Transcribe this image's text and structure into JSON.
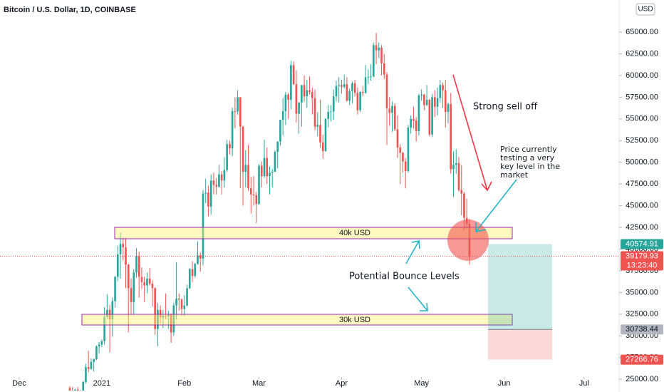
{
  "chart_data": {
    "type": "candlestick",
    "title": "Bitcoin / U.S. Dollar, 1D, COINBASE",
    "currency": "USD",
    "up_color": "#26a69a",
    "down_color": "#ef5350",
    "xlim": [
      -7.2,
      224.9
    ],
    "xticks": [
      {
        "value": 0,
        "label": "Dec"
      },
      {
        "value": 31,
        "label": "2021"
      },
      {
        "value": 62,
        "label": "Feb"
      },
      {
        "value": 90,
        "label": "Mar"
      },
      {
        "value": 121,
        "label": "Apr"
      },
      {
        "value": 151,
        "label": "May"
      },
      {
        "value": 182,
        "label": "Jun"
      },
      {
        "value": 212,
        "label": "Jul"
      }
    ],
    "ylim": [
      23700,
      68700
    ],
    "yticks": [
      {
        "value": 25000,
        "label": "25000.00"
      },
      {
        "value": 27500,
        "label": "27500.00"
      },
      {
        "value": 30000,
        "label": "30000.00"
      },
      {
        "value": 32500,
        "label": "32500.00"
      },
      {
        "value": 35000,
        "label": "35000.00"
      },
      {
        "value": 37500,
        "label": "37500.00"
      },
      {
        "value": 40000,
        "label": "40000.00"
      },
      {
        "value": 42500,
        "label": "42500.00"
      },
      {
        "value": 45000,
        "label": "45000.00"
      },
      {
        "value": 47500,
        "label": "47500.00"
      },
      {
        "value": 50000,
        "label": "50000.00"
      },
      {
        "value": 52500,
        "label": "52500.00"
      },
      {
        "value": 55000,
        "label": "55000.00"
      },
      {
        "value": 57500,
        "label": "57500.00"
      },
      {
        "value": 60000,
        "label": "60000.00"
      },
      {
        "value": 62500,
        "label": "62500.00"
      },
      {
        "value": 65000,
        "label": "65000.00"
      }
    ],
    "x": [
      19,
      20,
      21,
      22,
      23,
      24,
      25,
      26,
      27,
      28,
      29,
      30,
      31,
      32,
      33,
      34,
      35,
      36,
      37,
      38,
      39,
      40,
      41,
      42,
      43,
      44,
      45,
      46,
      47,
      48,
      49,
      50,
      51,
      52,
      53,
      54,
      55,
      56,
      57,
      58,
      59,
      60,
      61,
      62,
      63,
      64,
      65,
      66,
      67,
      68,
      69,
      70,
      71,
      72,
      73,
      74,
      75,
      76,
      77,
      78,
      79,
      80,
      81,
      82,
      83,
      84,
      85,
      86,
      87,
      88,
      89,
      90,
      91,
      92,
      93,
      94,
      95,
      96,
      97,
      98,
      99,
      100,
      101,
      102,
      103,
      104,
      105,
      106,
      107,
      108,
      109,
      110,
      111,
      112,
      113,
      114,
      115,
      116,
      117,
      118,
      119,
      120,
      121,
      122,
      123,
      124,
      125,
      126,
      127,
      128,
      129,
      130,
      131,
      132,
      133,
      134,
      135,
      136,
      137,
      138,
      139,
      140,
      141,
      142,
      143,
      144,
      145,
      146,
      147,
      148,
      149,
      150,
      151,
      152,
      153,
      154,
      155,
      156,
      157,
      158,
      159,
      160,
      161,
      162,
      163,
      164,
      165,
      166,
      167,
      168,
      169
    ],
    "open": [
      24000,
      23500,
      22700,
      23800,
      23200,
      23700,
      24700,
      26400,
      26200,
      27000,
      27300,
      28800,
      29000,
      29400,
      32200,
      33000,
      31900,
      34000,
      36800,
      39400,
      40600,
      40200,
      38200,
      35500,
      33900,
      37300,
      39200,
      36800,
      36200,
      35800,
      36600,
      36000,
      35500,
      30800,
      33000,
      32100,
      32300,
      32250,
      32500,
      30400,
      33500,
      34300,
      34200,
      33100,
      33500,
      35500,
      37700,
      36900,
      38300,
      39300,
      38900,
      46400,
      46500,
      44900,
      47900,
      47400,
      47200,
      48600,
      47900,
      49100,
      52100,
      51600,
      55900,
      55850,
      57500,
      54100,
      48900,
      49700,
      47000,
      46300,
      46200,
      45200,
      49600,
      48400,
      50500,
      48400,
      48800,
      48900,
      51200,
      52400,
      54900,
      55900,
      57800,
      57200,
      61200,
      59000,
      55600,
      56900,
      58900,
      57600,
      58300,
      58100,
      57400,
      54100,
      54300,
      52300,
      51300,
      55000,
      55800,
      55850,
      57600,
      58800,
      58900,
      58700,
      59000,
      57100,
      58200,
      59100,
      58000,
      56000,
      58100,
      58000,
      59800,
      59850,
      59900,
      63500,
      62900,
      63200,
      61400,
      60100,
      56200,
      55700,
      56500,
      53800,
      51700,
      51100,
      50100,
      49000,
      54000,
      55000,
      54800,
      53600,
      57700,
      57800,
      56600,
      57200,
      53200,
      57500,
      56400,
      57400,
      58900,
      58300,
      55800,
      56700,
      49200,
      49700,
      49900,
      46800,
      46400,
      43600,
      42900
    ],
    "high": [
      24200,
      24100,
      23900,
      24100,
      23800,
      24800,
      26800,
      28300,
      27400,
      27400,
      28900,
      29300,
      29600,
      33300,
      34800,
      33600,
      34400,
      36900,
      40400,
      41900,
      41300,
      41300,
      38300,
      36600,
      37700,
      40100,
      39700,
      37900,
      36800,
      37300,
      37800,
      36400,
      35600,
      33800,
      33500,
      33000,
      34900,
      32900,
      32600,
      33800,
      38500,
      34900,
      34300,
      34700,
      35900,
      37800,
      38600,
      38400,
      40900,
      39600,
      46800,
      48100,
      47300,
      48600,
      48800,
      48200,
      49700,
      49000,
      50600,
      52600,
      52500,
      56300,
      57500,
      58300,
      57500,
      54200,
      51400,
      52000,
      48300,
      48400,
      46600,
      49800,
      50100,
      52600,
      51700,
      49500,
      49200,
      51400,
      52400,
      54900,
      57400,
      58100,
      58000,
      61700,
      61600,
      60600,
      56900,
      58900,
      60000,
      59500,
      59900,
      58600,
      58400,
      55800,
      57200,
      53200,
      55100,
      56600,
      56600,
      58400,
      59400,
      59800,
      59500,
      60100,
      59800,
      58500,
      59300,
      59500,
      58600,
      58200,
      58800,
      61200,
      60700,
      61300,
      63800,
      64900,
      63800,
      63500,
      62500,
      60400,
      57500,
      57000,
      56800,
      55400,
      52100,
      51200,
      50500,
      54300,
      55400,
      56400,
      55200,
      57900,
      58400,
      57900,
      58900,
      57300,
      57900,
      58300,
      58600,
      59500,
      59200,
      59500,
      56900,
      58000,
      51300,
      51500,
      50600,
      49700,
      46600,
      45800,
      43500
    ],
    "low": [
      23100,
      22400,
      22400,
      22600,
      22700,
      23500,
      24500,
      25800,
      26100,
      25900,
      27200,
      28000,
      28700,
      29000,
      32000,
      28100,
      29900,
      33300,
      36300,
      36600,
      38700,
      35500,
      30400,
      32500,
      32400,
      36700,
      34400,
      35400,
      33900,
      34900,
      35800,
      33400,
      30100,
      28800,
      31400,
      30900,
      31900,
      30800,
      29200,
      30000,
      31900,
      32900,
      32300,
      32300,
      33400,
      35400,
      36200,
      36700,
      38200,
      37400,
      38100,
      45300,
      43800,
      44000,
      46300,
      46300,
      47100,
      46300,
      47100,
      48900,
      50900,
      50700,
      53900,
      55500,
      47000,
      45000,
      47100,
      46700,
      44100,
      45000,
      43000,
      45100,
      47100,
      48200,
      47500,
      46300,
      47100,
      48900,
      49300,
      51900,
      53100,
      54300,
      55000,
      56100,
      58900,
      54600,
      53300,
      54100,
      57000,
      56300,
      57800,
      55500,
      53700,
      53000,
      51700,
      50400,
      51200,
      54000,
      54700,
      54900,
      57000,
      56900,
      57900,
      58500,
      57000,
      56600,
      56800,
      57600,
      55500,
      55800,
      57600,
      57900,
      59000,
      59400,
      59800,
      61300,
      62000,
      60000,
      59600,
      52000,
      54200,
      53500,
      53600,
      50500,
      47500,
      48800,
      47000,
      48800,
      53300,
      53900,
      52400,
      53100,
      57100,
      56000,
      56500,
      53000,
      52900,
      55200,
      55400,
      56900,
      56300,
      54000,
      54500,
      48700,
      46000,
      48700,
      46600,
      43900,
      42100,
      42300,
      38200
    ],
    "close": [
      23500,
      22700,
      23800,
      23200,
      23700,
      24700,
      26400,
      26200,
      27000,
      27300,
      28800,
      29000,
      29400,
      32200,
      33000,
      31900,
      34000,
      36800,
      39400,
      40600,
      40200,
      38200,
      35500,
      33900,
      37300,
      39200,
      36800,
      36200,
      35800,
      36600,
      36000,
      35500,
      30800,
      33000,
      32100,
      32300,
      32250,
      32500,
      30400,
      33500,
      34300,
      34200,
      33100,
      33500,
      35500,
      37700,
      36900,
      38300,
      39300,
      38900,
      46400,
      46500,
      44900,
      47900,
      47400,
      47200,
      48600,
      47900,
      49100,
      52100,
      51600,
      55900,
      55850,
      57500,
      54100,
      48900,
      49700,
      47000,
      46300,
      46200,
      45200,
      49600,
      48400,
      50500,
      48400,
      48800,
      48900,
      51200,
      52400,
      54900,
      55900,
      57800,
      57200,
      61200,
      59000,
      55600,
      56900,
      58900,
      57600,
      58300,
      58100,
      57400,
      54100,
      54300,
      52300,
      51300,
      55000,
      55800,
      55850,
      57600,
      58800,
      58900,
      58700,
      59000,
      57100,
      58200,
      59100,
      58000,
      56000,
      58100,
      58000,
      59800,
      59850,
      59900,
      63500,
      62900,
      63200,
      61400,
      60100,
      56200,
      55700,
      56500,
      53800,
      51700,
      51100,
      50100,
      49000,
      54000,
      55000,
      54800,
      53600,
      57700,
      57800,
      56600,
      57200,
      53200,
      57500,
      56400,
      57400,
      58900,
      58300,
      55800,
      56700,
      49200,
      49700,
      49900,
      46800,
      46400,
      43600,
      42900,
      39179.93
    ],
    "price_labels": [
      {
        "value": 40574.91,
        "color": "#26a69a"
      },
      {
        "value": 39179.93,
        "color": "#ef5350"
      },
      {
        "value": 30738.44,
        "color": "#b2b5be"
      },
      {
        "value": 27266.76,
        "color": "#ef5350"
      }
    ],
    "countdown": "13:23:40",
    "zone_labels": [
      "40k USD",
      "30k USD"
    ],
    "sell_off_note": "Strong sell off",
    "key_level_note": [
      "Price currently",
      "testing a very",
      "key level in the",
      "market"
    ],
    "bounce_note": "Potential Bounce Levels"
  }
}
